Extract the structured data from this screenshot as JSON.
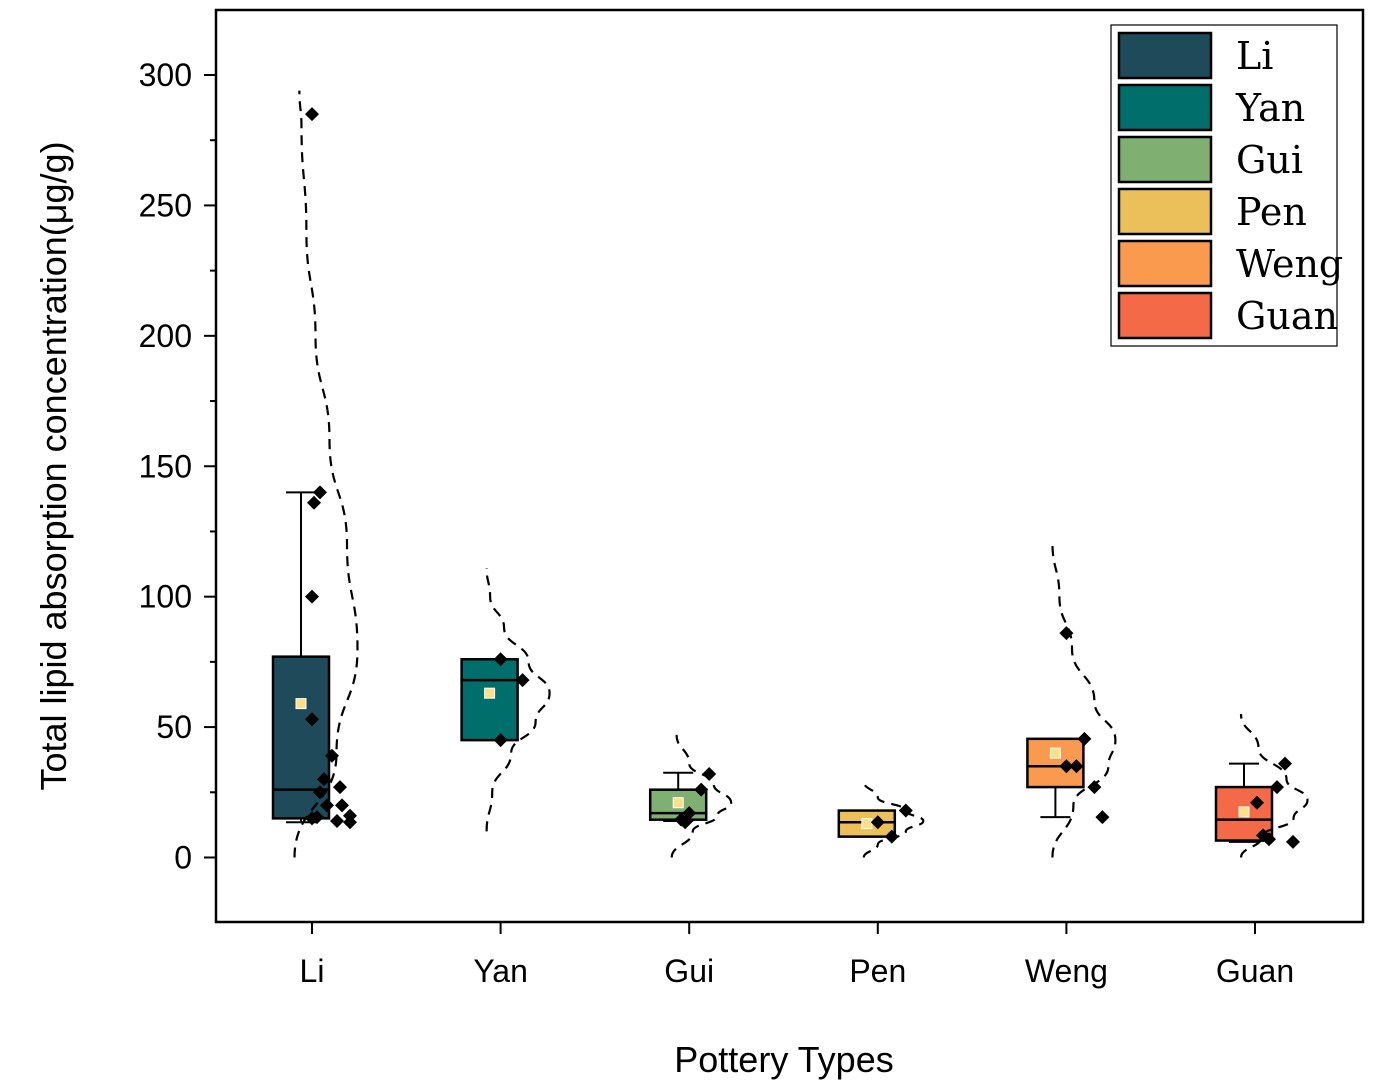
{
  "chart_data": {
    "type": "box",
    "title": "",
    "xlabel": "Pottery Types",
    "ylabel": "Total lipid absorption concentration(μg/g)",
    "ylim": [
      -25,
      325
    ],
    "yticks": [
      0,
      50,
      100,
      150,
      200,
      250,
      300
    ],
    "ytick_labels": [
      "0",
      "50",
      "100",
      "150",
      "200",
      "250",
      "300"
    ],
    "categories": [
      "Li",
      "Yan",
      "Gui",
      "Pen",
      "Weng",
      "Guan"
    ],
    "legend": {
      "position": "top-right",
      "entries": [
        "Li",
        "Yan",
        "Gui",
        "Pen",
        "Weng",
        "Guan"
      ]
    },
    "series": [
      {
        "name": "Li",
        "color": "#1e4a5a",
        "q1": 15,
        "median": 26,
        "q3": 77,
        "whisker_low": 13.5,
        "whisker_high": 140,
        "mean": 59,
        "points": [
          285,
          140,
          136,
          100,
          53,
          39,
          30,
          27,
          25,
          20,
          20,
          16,
          15,
          14,
          13.5,
          15.5
        ],
        "curve": [
          [
            0,
            -0.05
          ],
          [
            40,
            0.55
          ],
          [
            80,
            0.85
          ],
          [
            120,
            0.7
          ],
          [
            160,
            0.45
          ],
          [
            200,
            0.25
          ],
          [
            240,
            0.12
          ],
          [
            280,
            0.05
          ],
          [
            294,
            0.02
          ]
        ]
      },
      {
        "name": "Yan",
        "color": "#006e6a",
        "q1": 45,
        "median": 68,
        "q3": 76,
        "whisker_low": 45,
        "whisker_high": 76,
        "mean": 63,
        "points": [
          76,
          68,
          45
        ],
        "curve": [
          [
            10,
            0
          ],
          [
            25,
            0.08
          ],
          [
            40,
            0.35
          ],
          [
            52,
            0.7
          ],
          [
            63,
            0.9
          ],
          [
            75,
            0.6
          ],
          [
            88,
            0.25
          ],
          [
            100,
            0.05
          ],
          [
            111,
            0
          ]
        ]
      },
      {
        "name": "Gui",
        "color": "#7fb071",
        "q1": 14.5,
        "median": 17,
        "q3": 26,
        "whisker_low": 14,
        "whisker_high": 32.5,
        "mean": 21,
        "points": [
          32,
          26,
          17,
          14.5,
          13.5
        ],
        "curve": [
          [
            0,
            -0.05
          ],
          [
            10,
            0.25
          ],
          [
            16,
            0.6
          ],
          [
            21,
            0.8
          ],
          [
            28,
            0.55
          ],
          [
            36,
            0.2
          ],
          [
            47,
            0.02
          ]
        ]
      },
      {
        "name": "Pen",
        "color": "#ebc05a",
        "q1": 8,
        "median": 13.5,
        "q3": 18,
        "whisker_low": 8,
        "whisker_high": 18,
        "mean": 13,
        "points": [
          18,
          13.5,
          8
        ],
        "curve": [
          [
            0,
            0
          ],
          [
            5,
            0.2
          ],
          [
            10,
            0.6
          ],
          [
            14,
            0.85
          ],
          [
            18,
            0.6
          ],
          [
            23,
            0.2
          ],
          [
            29,
            0
          ]
        ]
      },
      {
        "name": "Weng",
        "color": "#fa9a4f",
        "q1": 27,
        "median": 35,
        "q3": 45.5,
        "whisker_low": 15.5,
        "whisker_high": 45.5,
        "mean": 40,
        "points": [
          86,
          45.5,
          35,
          35,
          27,
          15.5
        ],
        "curve": [
          [
            0,
            0
          ],
          [
            20,
            0.3
          ],
          [
            35,
            0.8
          ],
          [
            45,
            0.9
          ],
          [
            60,
            0.6
          ],
          [
            80,
            0.28
          ],
          [
            100,
            0.1
          ],
          [
            121,
            0
          ]
        ]
      },
      {
        "name": "Guan",
        "color": "#f46a48",
        "q1": 6.5,
        "median": 14.5,
        "q3": 27,
        "whisker_low": 6,
        "whisker_high": 36,
        "mean": 17.5,
        "points": [
          36,
          27,
          21,
          8.5,
          7,
          6
        ],
        "curve": [
          [
            0,
            0
          ],
          [
            8,
            0.3
          ],
          [
            15,
            0.75
          ],
          [
            22,
            0.95
          ],
          [
            30,
            0.65
          ],
          [
            42,
            0.25
          ],
          [
            55,
            0
          ]
        ]
      }
    ]
  }
}
